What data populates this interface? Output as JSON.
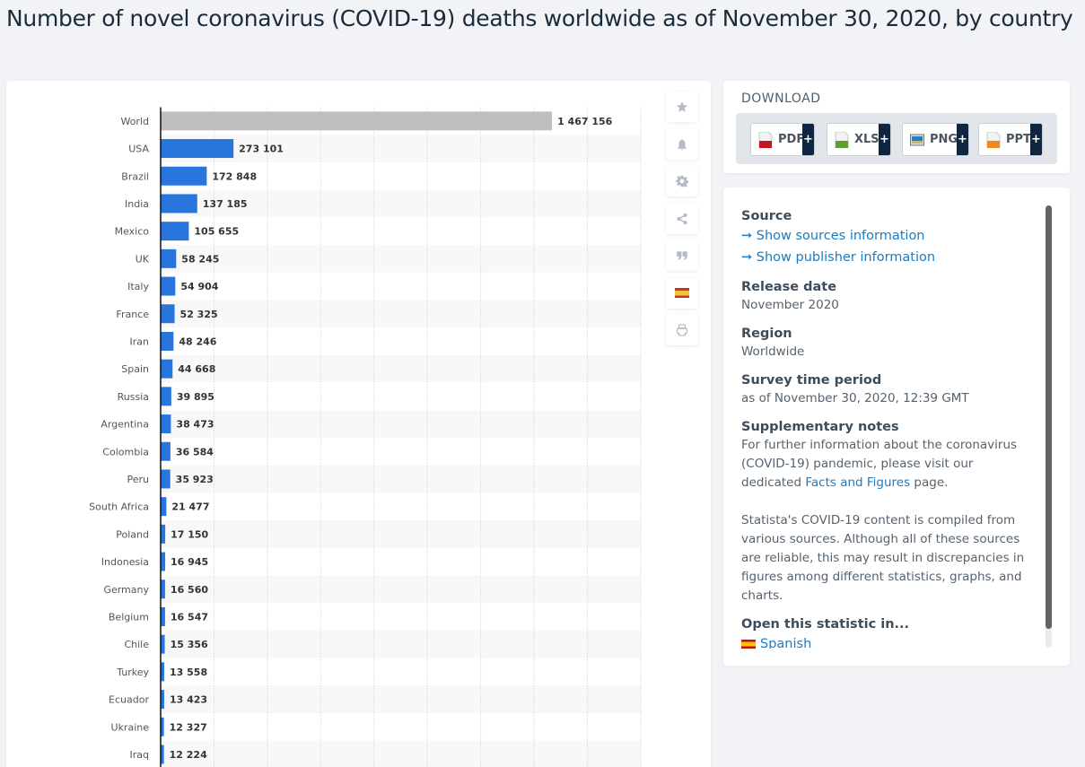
{
  "page": {
    "title": "Number of novel coronavirus (COVID-19) deaths worldwide as of November 30, 2020, by country"
  },
  "toolbar": {
    "items": [
      {
        "icon": "star-icon",
        "label": "Favorite"
      },
      {
        "icon": "bell-icon",
        "label": "Notification"
      },
      {
        "icon": "gear-icon",
        "label": "Settings"
      },
      {
        "icon": "share-icon",
        "label": "Share"
      },
      {
        "icon": "quote-icon",
        "label": "Cite"
      },
      {
        "icon": "spanish-flag-icon",
        "label": "Spanish"
      },
      {
        "icon": "print-icon",
        "label": "Print"
      }
    ]
  },
  "download": {
    "title": "DOWNLOAD",
    "buttons": [
      {
        "label": "PDF",
        "icon": "pdf-file-icon",
        "color": "#c4161c",
        "plus": "+"
      },
      {
        "label": "XLS",
        "icon": "xls-file-icon",
        "color": "#5aa02c",
        "plus": "+"
      },
      {
        "label": "PNG",
        "icon": "png-image-icon",
        "color": "#2a7bbf",
        "plus": "+"
      },
      {
        "label": "PPT",
        "icon": "ppt-file-icon",
        "color": "#f08a1c",
        "plus": "+"
      }
    ]
  },
  "info": {
    "source_heading": "Source",
    "source_links": [
      "Show sources information",
      "Show publisher information"
    ],
    "link_arrow": "➞",
    "release_heading": "Release date",
    "release_value": "November 2020",
    "region_heading": "Region",
    "region_value": "Worldwide",
    "survey_heading": "Survey time period",
    "survey_value": "as of November 30, 2020, 12:39 GMT",
    "notes_heading": "Supplementary notes",
    "notes_p1_before": "For further information about the coronavirus (COVID-19) pandemic, please visit our dedicated ",
    "notes_p1_link": "Facts and Figures",
    "notes_p1_after": " page.",
    "notes_p2": "Statista's COVID-19 content is compiled from various sources. Although all of these sources are reliable, this may result in discrepancies in figures among different statistics, graphs, and charts.",
    "open_heading": "Open this statistic in...",
    "open_language": "Spanish"
  },
  "colors": {
    "bar": "#2876dd",
    "world_bar": "#bfbfbf",
    "label_text": "#333333",
    "category_text": "#555555"
  },
  "chart_data": {
    "type": "bar",
    "orientation": "horizontal",
    "title": "Number of novel coronavirus (COVID-19) deaths worldwide as of November 30, 2020, by country",
    "xlabel": "",
    "ylabel": "",
    "xlim": [
      0,
      1800000
    ],
    "grid": true,
    "grid_step": 200000,
    "categories": [
      "World",
      "USA",
      "Brazil",
      "India",
      "Mexico",
      "UK",
      "Italy",
      "France",
      "Iran",
      "Spain",
      "Russia",
      "Argentina",
      "Colombia",
      "Peru",
      "South Africa",
      "Poland",
      "Indonesia",
      "Germany",
      "Belgium",
      "Chile",
      "Turkey",
      "Ecuador",
      "Ukraine",
      "Iraq"
    ],
    "values": [
      1467156,
      273101,
      172848,
      137185,
      105655,
      58245,
      54904,
      52325,
      48246,
      44668,
      39895,
      38473,
      36584,
      35923,
      21477,
      17150,
      16945,
      16560,
      16547,
      15356,
      13558,
      13423,
      12327,
      12224
    ],
    "value_labels": [
      "1 467 156",
      "273 101",
      "172 848",
      "137 185",
      "105 655",
      "58 245",
      "54 904",
      "52 325",
      "48 246",
      "44 668",
      "39 895",
      "38 473",
      "36 584",
      "35 923",
      "21 477",
      "17 150",
      "16 945",
      "16 560",
      "16 547",
      "15 356",
      "13 558",
      "13 423",
      "12 327",
      "12 224"
    ],
    "highlight": {
      "category": "World",
      "color": "#bfbfbf"
    }
  }
}
